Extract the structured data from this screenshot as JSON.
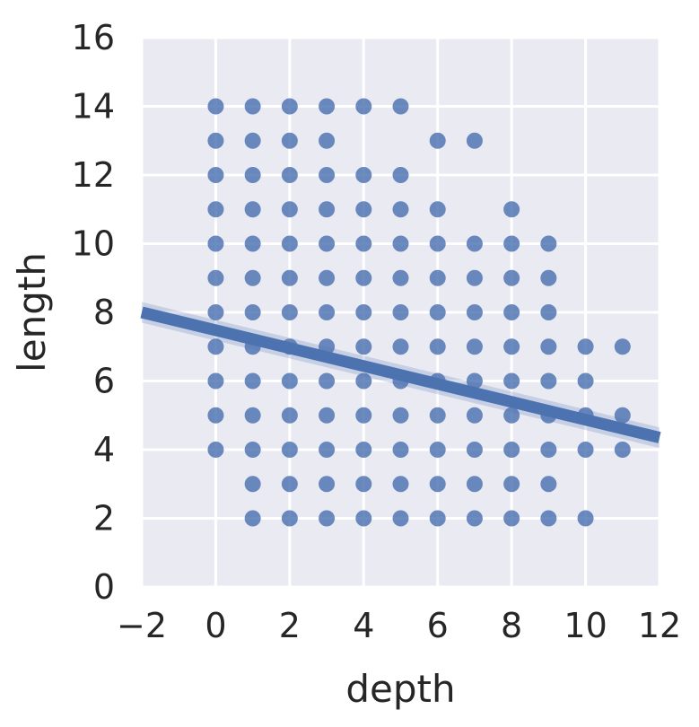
{
  "chart_data": {
    "type": "scatter",
    "title": "",
    "xlabel": "depth",
    "ylabel": "length",
    "xlim": [
      -2,
      12
    ],
    "ylim": [
      0,
      16
    ],
    "xticks": [
      -2,
      0,
      2,
      4,
      6,
      8,
      10,
      12
    ],
    "yticks": [
      0,
      2,
      4,
      6,
      8,
      10,
      12,
      14,
      16
    ],
    "grid": true,
    "legend": "none",
    "colors": {
      "background": "#EAEAF2",
      "grid": "#FFFFFF",
      "points": "#4C72B0",
      "fit_line": "#4C72B0",
      "confidence_band": "#4C72B0"
    },
    "series": [
      {
        "values": [
          {
            "x": 0,
            "y": 4
          },
          {
            "x": 0,
            "y": 5
          },
          {
            "x": 0,
            "y": 6
          },
          {
            "x": 0,
            "y": 7
          },
          {
            "x": 0,
            "y": 8
          },
          {
            "x": 0,
            "y": 9
          },
          {
            "x": 0,
            "y": 10
          },
          {
            "x": 0,
            "y": 11
          },
          {
            "x": 0,
            "y": 12
          },
          {
            "x": 0,
            "y": 13
          },
          {
            "x": 0,
            "y": 14
          },
          {
            "x": 1,
            "y": 2
          },
          {
            "x": 1,
            "y": 3
          },
          {
            "x": 1,
            "y": 4
          },
          {
            "x": 1,
            "y": 5
          },
          {
            "x": 1,
            "y": 6
          },
          {
            "x": 1,
            "y": 7
          },
          {
            "x": 1,
            "y": 8
          },
          {
            "x": 1,
            "y": 9
          },
          {
            "x": 1,
            "y": 10
          },
          {
            "x": 1,
            "y": 11
          },
          {
            "x": 1,
            "y": 12
          },
          {
            "x": 1,
            "y": 13
          },
          {
            "x": 1,
            "y": 14
          },
          {
            "x": 2,
            "y": 2
          },
          {
            "x": 2,
            "y": 3
          },
          {
            "x": 2,
            "y": 4
          },
          {
            "x": 2,
            "y": 5
          },
          {
            "x": 2,
            "y": 6
          },
          {
            "x": 2,
            "y": 7
          },
          {
            "x": 2,
            "y": 8
          },
          {
            "x": 2,
            "y": 9
          },
          {
            "x": 2,
            "y": 10
          },
          {
            "x": 2,
            "y": 11
          },
          {
            "x": 2,
            "y": 12
          },
          {
            "x": 2,
            "y": 13
          },
          {
            "x": 2,
            "y": 14
          },
          {
            "x": 3,
            "y": 2
          },
          {
            "x": 3,
            "y": 3
          },
          {
            "x": 3,
            "y": 4
          },
          {
            "x": 3,
            "y": 5
          },
          {
            "x": 3,
            "y": 6
          },
          {
            "x": 3,
            "y": 7
          },
          {
            "x": 3,
            "y": 8
          },
          {
            "x": 3,
            "y": 9
          },
          {
            "x": 3,
            "y": 10
          },
          {
            "x": 3,
            "y": 11
          },
          {
            "x": 3,
            "y": 12
          },
          {
            "x": 3,
            "y": 13
          },
          {
            "x": 3,
            "y": 14
          },
          {
            "x": 4,
            "y": 2
          },
          {
            "x": 4,
            "y": 3
          },
          {
            "x": 4,
            "y": 4
          },
          {
            "x": 4,
            "y": 5
          },
          {
            "x": 4,
            "y": 6
          },
          {
            "x": 4,
            "y": 7
          },
          {
            "x": 4,
            "y": 8
          },
          {
            "x": 4,
            "y": 9
          },
          {
            "x": 4,
            "y": 10
          },
          {
            "x": 4,
            "y": 11
          },
          {
            "x": 4,
            "y": 12
          },
          {
            "x": 4,
            "y": 14
          },
          {
            "x": 5,
            "y": 2
          },
          {
            "x": 5,
            "y": 3
          },
          {
            "x": 5,
            "y": 4
          },
          {
            "x": 5,
            "y": 5
          },
          {
            "x": 5,
            "y": 6
          },
          {
            "x": 5,
            "y": 7
          },
          {
            "x": 5,
            "y": 8
          },
          {
            "x": 5,
            "y": 9
          },
          {
            "x": 5,
            "y": 10
          },
          {
            "x": 5,
            "y": 11
          },
          {
            "x": 5,
            "y": 12
          },
          {
            "x": 5,
            "y": 14
          },
          {
            "x": 6,
            "y": 2
          },
          {
            "x": 6,
            "y": 3
          },
          {
            "x": 6,
            "y": 4
          },
          {
            "x": 6,
            "y": 5
          },
          {
            "x": 6,
            "y": 6
          },
          {
            "x": 6,
            "y": 7
          },
          {
            "x": 6,
            "y": 8
          },
          {
            "x": 6,
            "y": 9
          },
          {
            "x": 6,
            "y": 10
          },
          {
            "x": 6,
            "y": 11
          },
          {
            "x": 6,
            "y": 13
          },
          {
            "x": 7,
            "y": 2
          },
          {
            "x": 7,
            "y": 3
          },
          {
            "x": 7,
            "y": 4
          },
          {
            "x": 7,
            "y": 5
          },
          {
            "x": 7,
            "y": 6
          },
          {
            "x": 7,
            "y": 7
          },
          {
            "x": 7,
            "y": 8
          },
          {
            "x": 7,
            "y": 9
          },
          {
            "x": 7,
            "y": 10
          },
          {
            "x": 7,
            "y": 13
          },
          {
            "x": 8,
            "y": 2
          },
          {
            "x": 8,
            "y": 3
          },
          {
            "x": 8,
            "y": 4
          },
          {
            "x": 8,
            "y": 5
          },
          {
            "x": 8,
            "y": 6
          },
          {
            "x": 8,
            "y": 7
          },
          {
            "x": 8,
            "y": 8
          },
          {
            "x": 8,
            "y": 9
          },
          {
            "x": 8,
            "y": 10
          },
          {
            "x": 8,
            "y": 11
          },
          {
            "x": 9,
            "y": 2
          },
          {
            "x": 9,
            "y": 3
          },
          {
            "x": 9,
            "y": 4
          },
          {
            "x": 9,
            "y": 5
          },
          {
            "x": 9,
            "y": 6
          },
          {
            "x": 9,
            "y": 7
          },
          {
            "x": 9,
            "y": 8
          },
          {
            "x": 9,
            "y": 9
          },
          {
            "x": 9,
            "y": 10
          },
          {
            "x": 10,
            "y": 2
          },
          {
            "x": 10,
            "y": 4
          },
          {
            "x": 10,
            "y": 5
          },
          {
            "x": 10,
            "y": 6
          },
          {
            "x": 10,
            "y": 7
          },
          {
            "x": 11,
            "y": 4
          },
          {
            "x": 11,
            "y": 5
          },
          {
            "x": 11,
            "y": 7
          }
        ]
      }
    ],
    "regression": {
      "x_range": [
        -2,
        12
      ],
      "y_at_x_min": 8.0,
      "y_at_x_max": 4.35,
      "ci_halfwidth_at_ends": 0.3
    }
  }
}
